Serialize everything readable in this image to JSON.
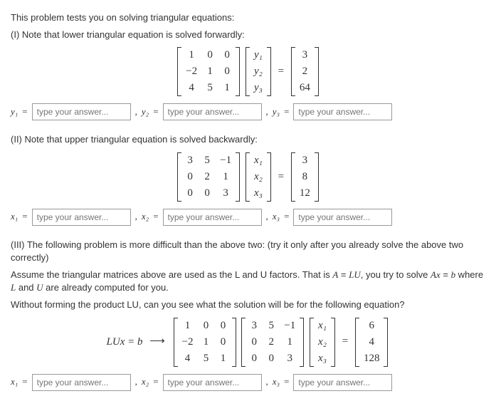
{
  "intro": "This problem tests you on solving triangular equations:",
  "part1": {
    "heading": "(I) Note that lower triangular equation is solved forwardly:",
    "L": [
      [
        "1",
        "0",
        "0"
      ],
      [
        "−2",
        "1",
        "0"
      ],
      [
        "4",
        "5",
        "1"
      ]
    ],
    "yvec": [
      "y₁",
      "y₂",
      "y₃"
    ],
    "rhs": [
      "3",
      "2",
      "64"
    ],
    "vars": [
      "y₁",
      "y₂",
      "y₃"
    ]
  },
  "part2": {
    "heading": "(II) Note that upper triangular equation is solved backwardly:",
    "U": [
      [
        "3",
        "5",
        "−1"
      ],
      [
        "0",
        "2",
        "1"
      ],
      [
        "0",
        "0",
        "3"
      ]
    ],
    "xvec": [
      "x₁",
      "x₂",
      "x₃"
    ],
    "rhs": [
      "3",
      "8",
      "12"
    ],
    "vars": [
      "x₁",
      "x₂",
      "x₃"
    ]
  },
  "part3": {
    "line1": "(III) The following problem is more difficult than the above two: (try it only after you already solve the above two correctly)",
    "line2a": "Assume the triangular matrices above are used as the L and U factors. That is ",
    "line2b": ", you try to solve ",
    "line2c": " where ",
    "line2d": " are already computed for you.",
    "line3": "Without forming the product LU, can you see what the solution will be for the following equation?",
    "lhs_label": "LUx = b",
    "L": [
      [
        "1",
        "0",
        "0"
      ],
      [
        "−2",
        "1",
        "0"
      ],
      [
        "4",
        "5",
        "1"
      ]
    ],
    "U": [
      [
        "3",
        "5",
        "−1"
      ],
      [
        "0",
        "2",
        "1"
      ],
      [
        "0",
        "0",
        "3"
      ]
    ],
    "xvec": [
      "x₁",
      "x₂",
      "x₃"
    ],
    "rhs": [
      "6",
      "4",
      "128"
    ],
    "vars": [
      "x₁",
      "x₂",
      "x₃"
    ]
  },
  "placeholder": "type your answer...",
  "eq": "=",
  "comma": ","
}
